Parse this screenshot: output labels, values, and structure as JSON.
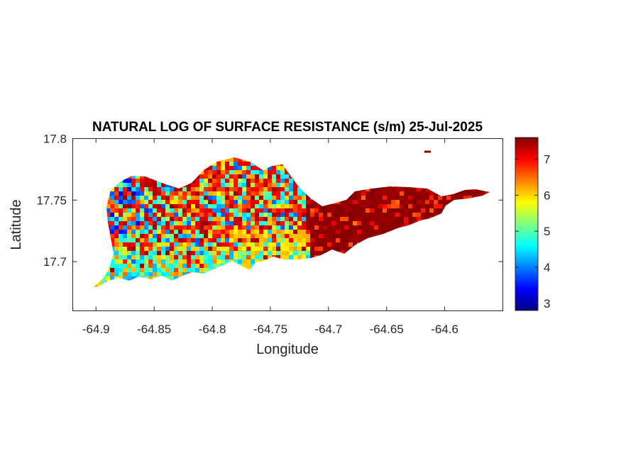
{
  "chart_data": {
    "type": "heatmap",
    "title": "NATURAL LOG OF SURFACE RESISTANCE (s/m) 25-Jul-2025",
    "xlabel": "Longitude",
    "ylabel": "Latitude",
    "xlim": [
      -64.92,
      -64.55
    ],
    "ylim": [
      17.66,
      17.8
    ],
    "xticks": [
      "-64.9",
      "-64.85",
      "-64.8",
      "-64.75",
      "-64.7",
      "-64.65",
      "-64.6"
    ],
    "xtick_values": [
      -64.9,
      -64.85,
      -64.8,
      -64.75,
      -64.7,
      -64.65,
      -64.6
    ],
    "yticks": [
      "17.7",
      "17.75",
      "17.8"
    ],
    "ytick_values": [
      17.7,
      17.75,
      17.8
    ],
    "colormap": "jet",
    "clim": [
      2.8,
      7.6
    ],
    "colorbar_ticks": [
      "3",
      "4",
      "5",
      "6",
      "7"
    ],
    "colorbar_tick_values": [
      3,
      4,
      5,
      6,
      7
    ],
    "grid": false,
    "regions": [
      {
        "west_lon": -64.9,
        "east_lon": -64.72,
        "value_range": [
          3,
          7.2
        ],
        "dominant": "mixed red with yellow, green and cyan"
      },
      {
        "west_lon": -64.72,
        "east_lon": -64.56,
        "value_range": [
          6.5,
          7.6
        ],
        "dominant": "dark red"
      }
    ]
  },
  "colors": {
    "frame": "#262626",
    "background": "#ffffff"
  }
}
